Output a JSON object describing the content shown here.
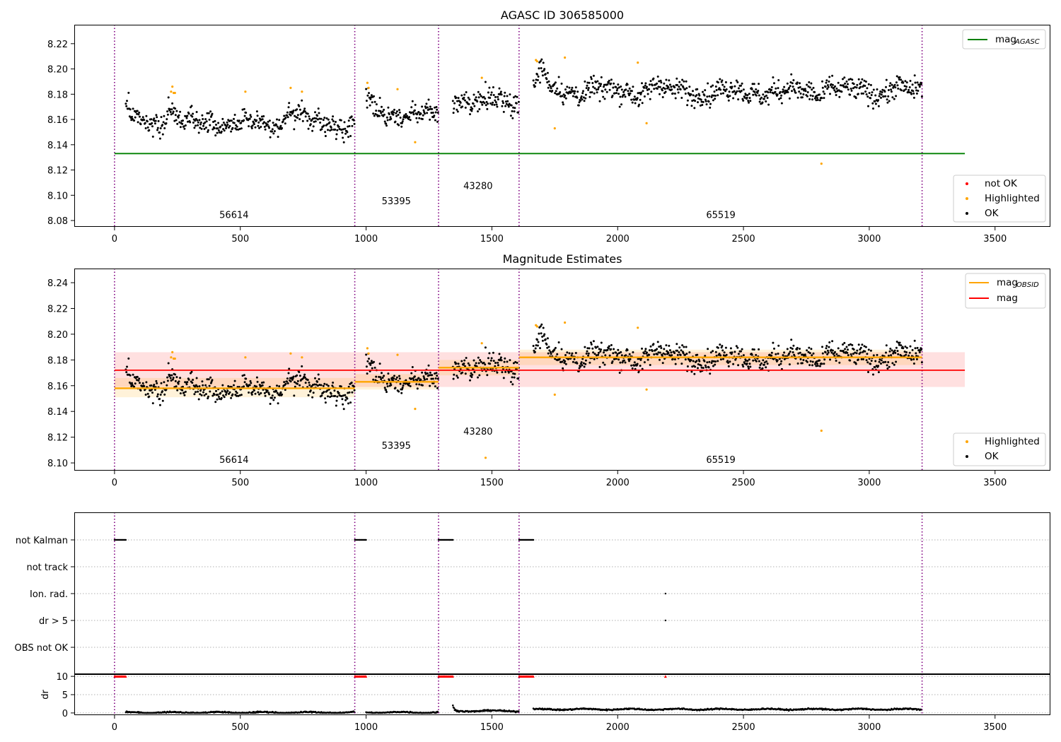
{
  "chart_data": [
    {
      "type": "scatter",
      "title": "AGASC ID 306585000",
      "xlim": [
        -160,
        3720
      ],
      "ylim": [
        8.075,
        8.235
      ],
      "x_ticks": [
        0,
        500,
        1000,
        1500,
        2000,
        2500,
        3000,
        3500
      ],
      "y_ticks": [
        8.08,
        8.1,
        8.12,
        8.14,
        8.16,
        8.18,
        8.2,
        8.22
      ],
      "grid": false,
      "obsid_boundaries": [
        0,
        955,
        1288,
        1608,
        3210
      ],
      "obsid_labels": [
        {
          "text": "56614",
          "x": 475,
          "y": 8.082
        },
        {
          "text": "53395",
          "x": 1120,
          "y": 8.093
        },
        {
          "text": "43280",
          "x": 1445,
          "y": 8.105
        },
        {
          "text": "65519",
          "x": 2410,
          "y": 8.082
        }
      ],
      "lines": [
        {
          "name": "mag_AGASC",
          "color": "#008000",
          "x": [
            0,
            3380
          ],
          "y": [
            8.133,
            8.133
          ]
        }
      ],
      "segments": [
        {
          "x0": 45,
          "x1": 955,
          "base": 8.157
        },
        {
          "x0": 1000,
          "x1": 1288,
          "base": 8.164
        },
        {
          "x0": 1345,
          "x1": 1608,
          "base": 8.175
        },
        {
          "x0": 1665,
          "x1": 3210,
          "base": 8.182
        }
      ],
      "highlighted_points": [
        [
          225,
          8.182
        ],
        [
          230,
          8.186
        ],
        [
          235,
          8.181
        ],
        [
          240,
          8.181
        ],
        [
          700,
          8.185
        ],
        [
          745,
          8.182
        ],
        [
          1005,
          8.189
        ],
        [
          1010,
          8.185
        ],
        [
          1125,
          8.184
        ],
        [
          1195,
          8.142
        ],
        [
          1460,
          8.193
        ],
        [
          1675,
          8.207
        ],
        [
          1680,
          8.206
        ],
        [
          1750,
          8.153
        ],
        [
          1790,
          8.209
        ],
        [
          2080,
          8.205
        ],
        [
          2115,
          8.157
        ],
        [
          2810,
          8.125
        ],
        [
          520,
          8.182
        ]
      ],
      "legend_top": [
        {
          "label": "mag",
          "sub": "AGASC",
          "color": "#008000"
        }
      ],
      "legend_bottom": [
        {
          "label": "not OK",
          "color": "#ff0000"
        },
        {
          "label": "Highlighted",
          "color": "#ffa500"
        },
        {
          "label": "OK",
          "color": "#000000"
        }
      ]
    },
    {
      "type": "scatter",
      "title": "Magnitude Estimates",
      "xlim": [
        -160,
        3720
      ],
      "ylim": [
        8.094,
        8.251
      ],
      "x_ticks": [
        0,
        500,
        1000,
        1500,
        2000,
        2500,
        3000,
        3500
      ],
      "y_ticks": [
        8.1,
        8.12,
        8.14,
        8.16,
        8.18,
        8.2,
        8.22,
        8.24
      ],
      "grid": false,
      "obsid_boundaries": [
        0,
        955,
        1288,
        1608,
        3210
      ],
      "obsid_labels": [
        {
          "text": "56614",
          "x": 475,
          "y": 8.1
        },
        {
          "text": "53395",
          "x": 1120,
          "y": 8.111
        },
        {
          "text": "43280",
          "x": 1445,
          "y": 8.122
        },
        {
          "text": "65519",
          "x": 2410,
          "y": 8.1
        }
      ],
      "mag": {
        "value": 8.172,
        "band": [
          8.159,
          8.186
        ],
        "x": [
          0,
          3380
        ],
        "color": "#ff0000"
      },
      "mag_obsid": [
        {
          "x0": 0,
          "x1": 955,
          "y": 8.158,
          "band": [
            8.151,
            8.166
          ]
        },
        {
          "x0": 955,
          "x1": 1288,
          "y": 8.163,
          "band": [
            8.157,
            8.169
          ]
        },
        {
          "x0": 1288,
          "x1": 1608,
          "y": 8.174,
          "band": [
            8.168,
            8.18
          ]
        },
        {
          "x0": 1608,
          "x1": 3210,
          "y": 8.182,
          "band": [
            8.176,
            8.188
          ]
        }
      ],
      "segments": [
        {
          "x0": 45,
          "x1": 955,
          "base": 8.157
        },
        {
          "x0": 1000,
          "x1": 1288,
          "base": 8.164
        },
        {
          "x0": 1345,
          "x1": 1608,
          "base": 8.175
        },
        {
          "x0": 1665,
          "x1": 3210,
          "base": 8.182
        }
      ],
      "highlighted_points": [
        [
          225,
          8.182
        ],
        [
          230,
          8.186
        ],
        [
          235,
          8.181
        ],
        [
          240,
          8.181
        ],
        [
          700,
          8.185
        ],
        [
          745,
          8.182
        ],
        [
          1005,
          8.189
        ],
        [
          1010,
          8.185
        ],
        [
          1125,
          8.184
        ],
        [
          1195,
          8.142
        ],
        [
          1460,
          8.193
        ],
        [
          1675,
          8.207
        ],
        [
          1680,
          8.206
        ],
        [
          1750,
          8.153
        ],
        [
          1790,
          8.209
        ],
        [
          2080,
          8.205
        ],
        [
          2115,
          8.157
        ],
        [
          2810,
          8.125
        ],
        [
          520,
          8.182
        ],
        [
          1475,
          8.104
        ]
      ],
      "legend_top": [
        {
          "label": "mag",
          "sub": "OBSID",
          "color": "#ffa500"
        },
        {
          "label": "mag",
          "sub": "",
          "color": "#ff0000"
        }
      ],
      "legend_bottom": [
        {
          "label": "Highlighted",
          "color": "#ffa500"
        },
        {
          "label": "OK",
          "color": "#000000"
        }
      ]
    },
    {
      "type": "scatter",
      "title": "",
      "xlim": [
        -160,
        3720
      ],
      "x_ticks": [
        0,
        500,
        1000,
        1500,
        2000,
        2500,
        3000,
        3500
      ],
      "flag_rows": [
        "not Kalman",
        "not track",
        "Ion. rad.",
        "dr > 5",
        "OBS not OK"
      ],
      "flag_ranges": {
        "not Kalman": [
          [
            0,
            45
          ],
          [
            955,
            1000
          ],
          [
            1288,
            1345
          ],
          [
            1608,
            1665
          ]
        ],
        "Ion. rad.": [
          [
            2190,
            2190
          ]
        ],
        "dr > 5": [
          [
            2190,
            2190
          ]
        ]
      },
      "dr_panel": {
        "ylabel": "dr",
        "y_ticks": [
          0,
          5,
          10
        ],
        "ylim": [
          -0.6,
          10.6
        ],
        "clipped_value": 10,
        "clipped_ranges": [
          [
            0,
            45
          ],
          [
            955,
            1000
          ],
          [
            1288,
            1345
          ],
          [
            1608,
            1665
          ],
          [
            2190,
            2190
          ]
        ]
      },
      "obsid_boundaries": [
        0,
        955,
        1288,
        1608,
        3210
      ]
    }
  ],
  "colors": {
    "ok": "#000000",
    "highlighted": "#ffa500",
    "not_ok": "#ff0000",
    "boundary": "#800080"
  }
}
